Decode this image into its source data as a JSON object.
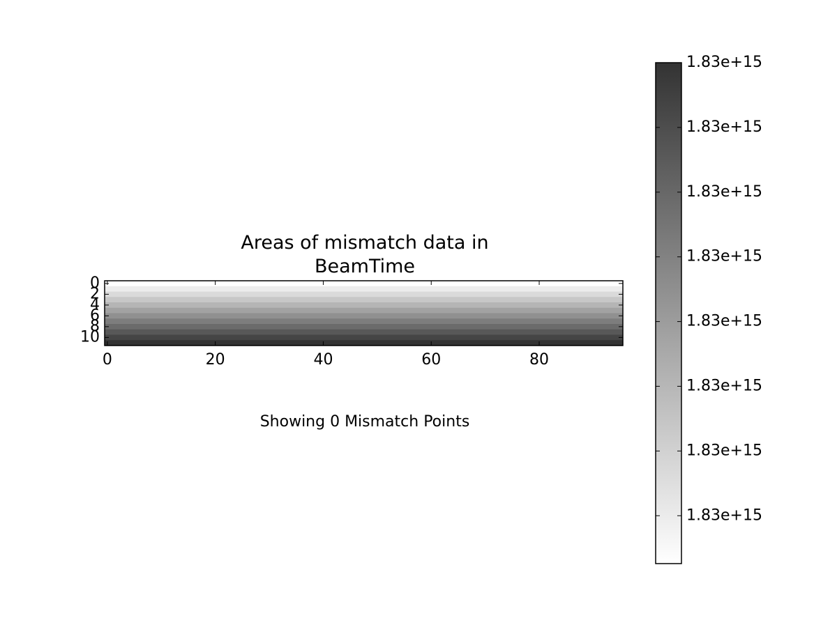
{
  "chart_data": {
    "type": "heatmap",
    "title": "Areas of mismatch data in\nBeamTime",
    "xlabel": "Showing 0 Mismatch Points",
    "values": [
      1830000000000000,
      1830000000000070,
      1830000000000141,
      1830000000000211,
      1830000000000281,
      1830000000000352,
      1830000000000422,
      1830000000000493,
      1830000000000563,
      1830000000000633,
      1830000000000704,
      1830000000000774
    ],
    "xlim": [
      -0.5,
      95.5
    ],
    "ylim": [
      11.5,
      -0.5
    ],
    "xticks": [
      0,
      20,
      40,
      60,
      80
    ],
    "yticks": [
      0,
      2,
      4,
      6,
      8,
      10
    ],
    "colormap": [
      "#ffffff",
      "#333333"
    ],
    "colorbar": {
      "lim": [
        1830000000000000,
        1830000000000774
      ],
      "ticks": [
        {
          "value": 1830000000000074,
          "label": "1.83e+15"
        },
        {
          "value": 1830000000000174,
          "label": "1.83e+15"
        },
        {
          "value": 1830000000000274,
          "label": "1.83e+15"
        },
        {
          "value": 1830000000000374,
          "label": "1.83e+15"
        },
        {
          "value": 1830000000000474,
          "label": "1.83e+15"
        },
        {
          "value": 1830000000000574,
          "label": "1.83e+15"
        },
        {
          "value": 1830000000000674,
          "label": "1.83e+15"
        },
        {
          "value": 1830000000000774,
          "label": "1.83e+15"
        }
      ]
    }
  }
}
